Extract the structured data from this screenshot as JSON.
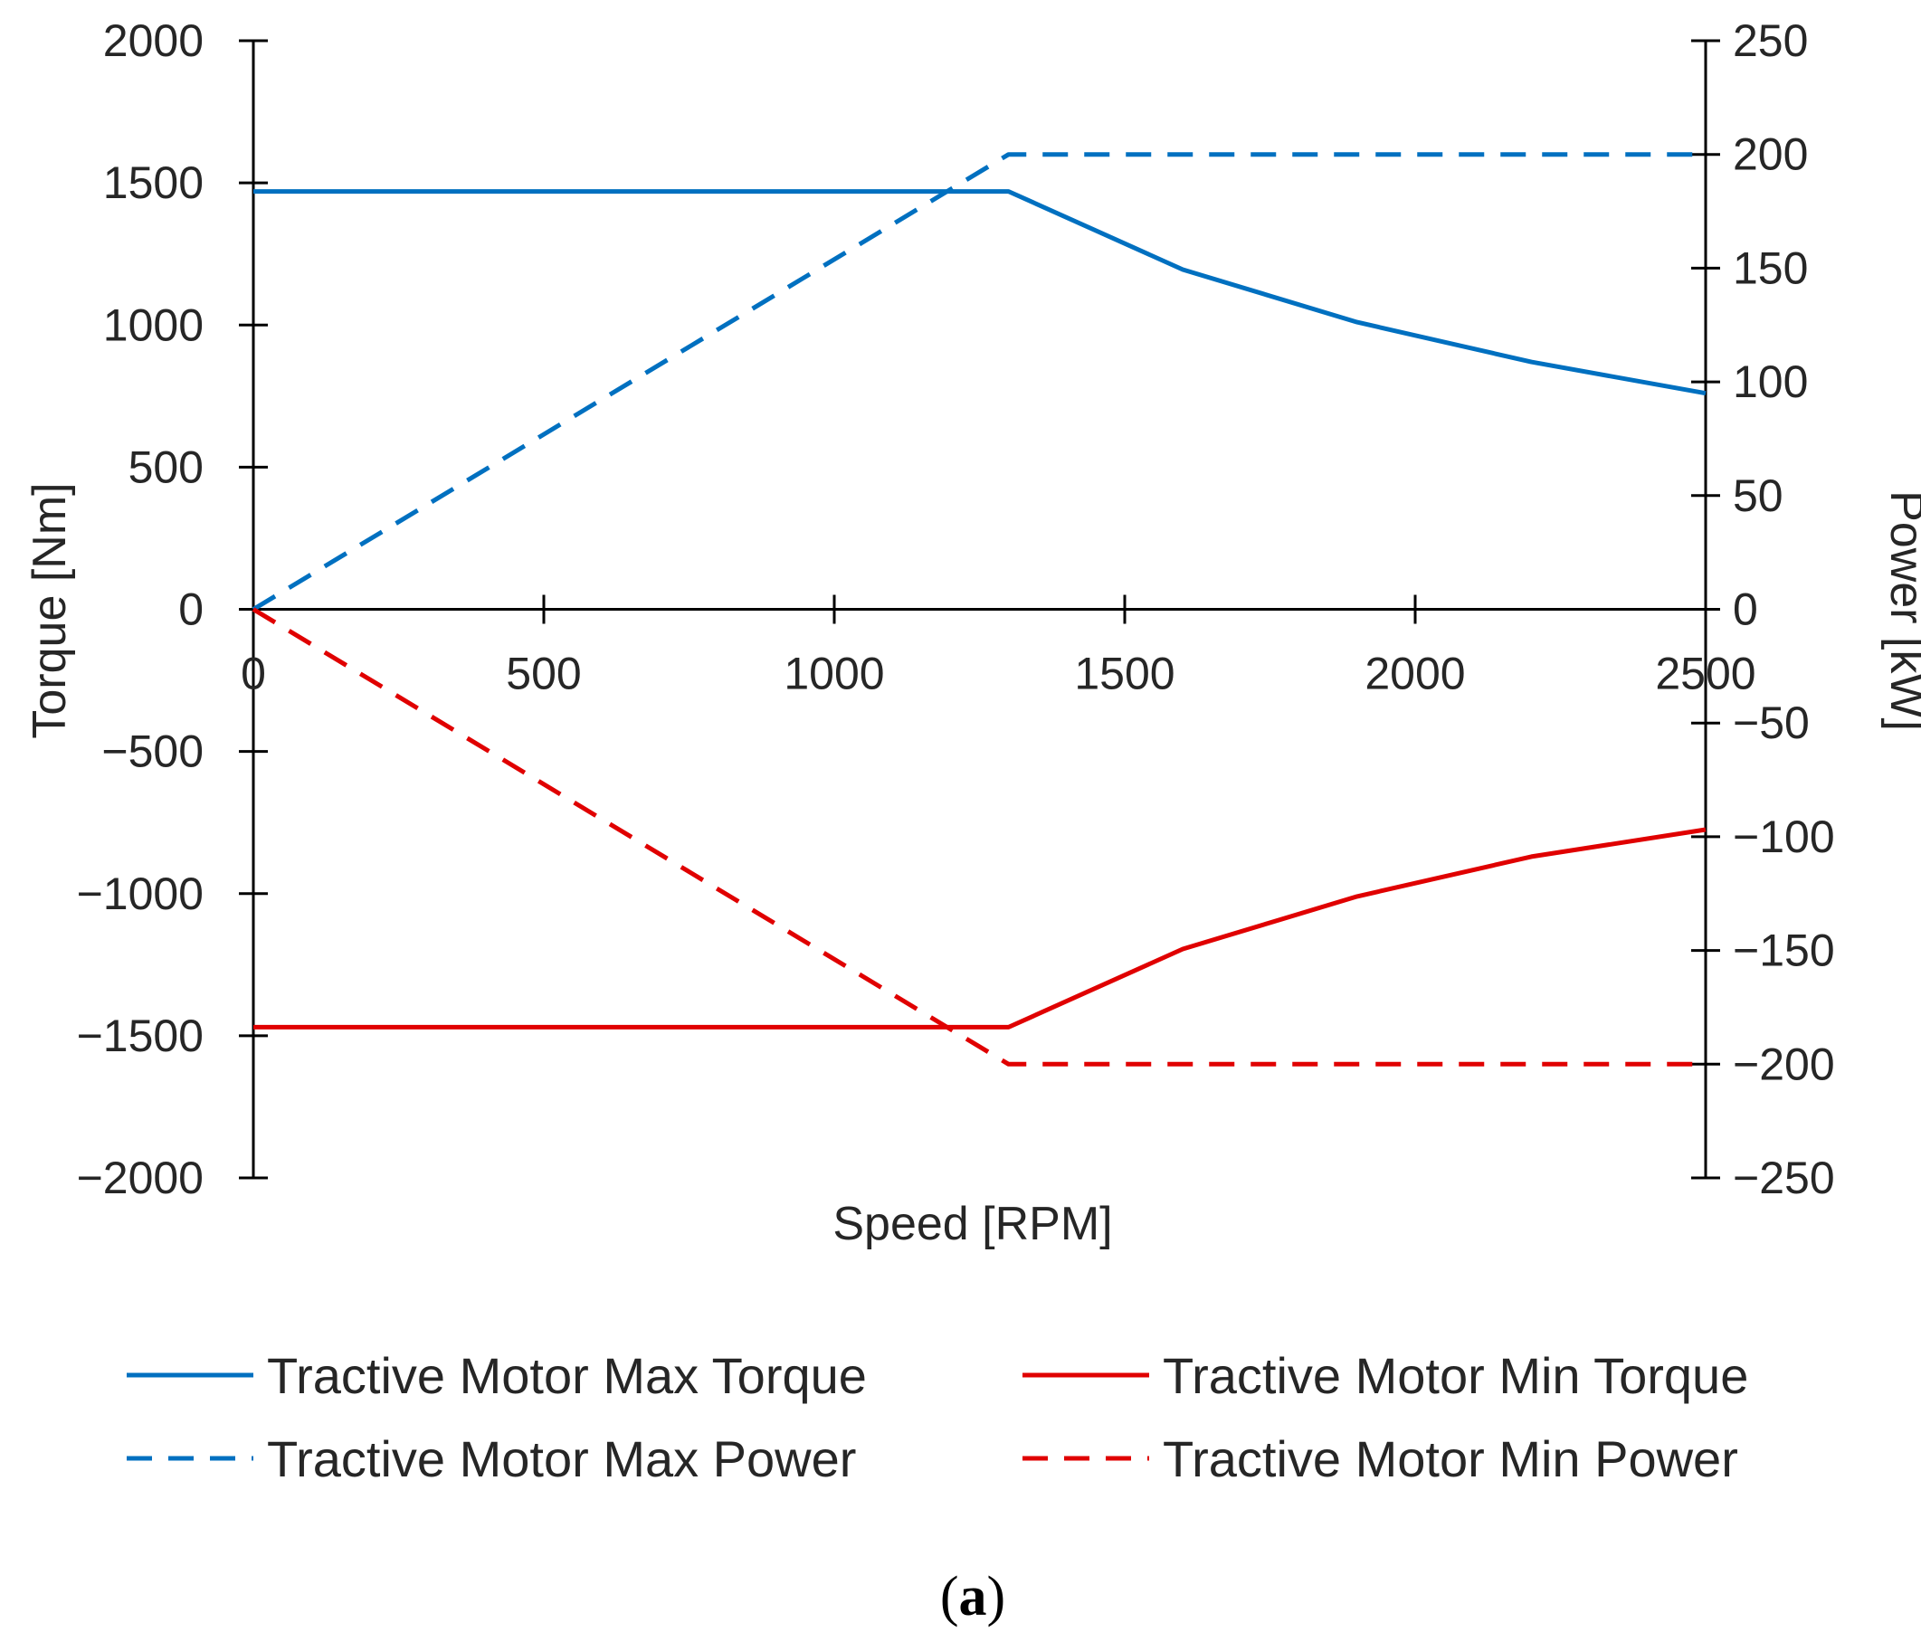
{
  "chart_data": {
    "type": "line",
    "xlabel": "Speed [RPM]",
    "ylabel_left": "Torque [Nm]",
    "ylabel_right": "Power [kW]",
    "xlim": [
      0,
      2500
    ],
    "ylim_left": [
      -2000,
      2000
    ],
    "ylim_right": [
      -250,
      250
    ],
    "x_ticks": [
      "0",
      "500",
      "1000",
      "1500",
      "2000",
      "2500"
    ],
    "y_left_ticks": [
      "2000",
      "1500",
      "1000",
      "500",
      "0",
      "−500",
      "−1000",
      "−1500",
      "−2000"
    ],
    "y_right_ticks": [
      "250",
      "200",
      "150",
      "100",
      "50",
      "0",
      "−50",
      "−100",
      "−150",
      "−200",
      "−250"
    ],
    "grid": false,
    "legend_position": "bottom",
    "series": [
      {
        "name": "Tractive Motor Max Torque",
        "axis": "left",
        "color": "#0070C0",
        "style": "solid",
        "x": [
          0,
          1300,
          1600,
          1900,
          2200,
          2500
        ],
        "y": [
          1470,
          1470,
          1195,
          1010,
          870,
          760
        ]
      },
      {
        "name": "Tractive Motor Min Torque",
        "axis": "left",
        "color": "#E00000",
        "style": "solid",
        "x": [
          0,
          1300,
          1600,
          1900,
          2200,
          2500
        ],
        "y": [
          -1470,
          -1470,
          -1195,
          -1010,
          -870,
          -775
        ]
      },
      {
        "name": "Tractive Motor Max Power",
        "axis": "right",
        "color": "#0070C0",
        "style": "dashed",
        "x": [
          0,
          1300,
          2500
        ],
        "y": [
          0,
          200,
          200
        ]
      },
      {
        "name": "Tractive Motor Min Power",
        "axis": "right",
        "color": "#E00000",
        "style": "dashed",
        "x": [
          0,
          1300,
          2500
        ],
        "y": [
          0,
          -200,
          -200
        ]
      }
    ]
  },
  "caption": {
    "open": "(",
    "letter": "a",
    "close": ")"
  }
}
